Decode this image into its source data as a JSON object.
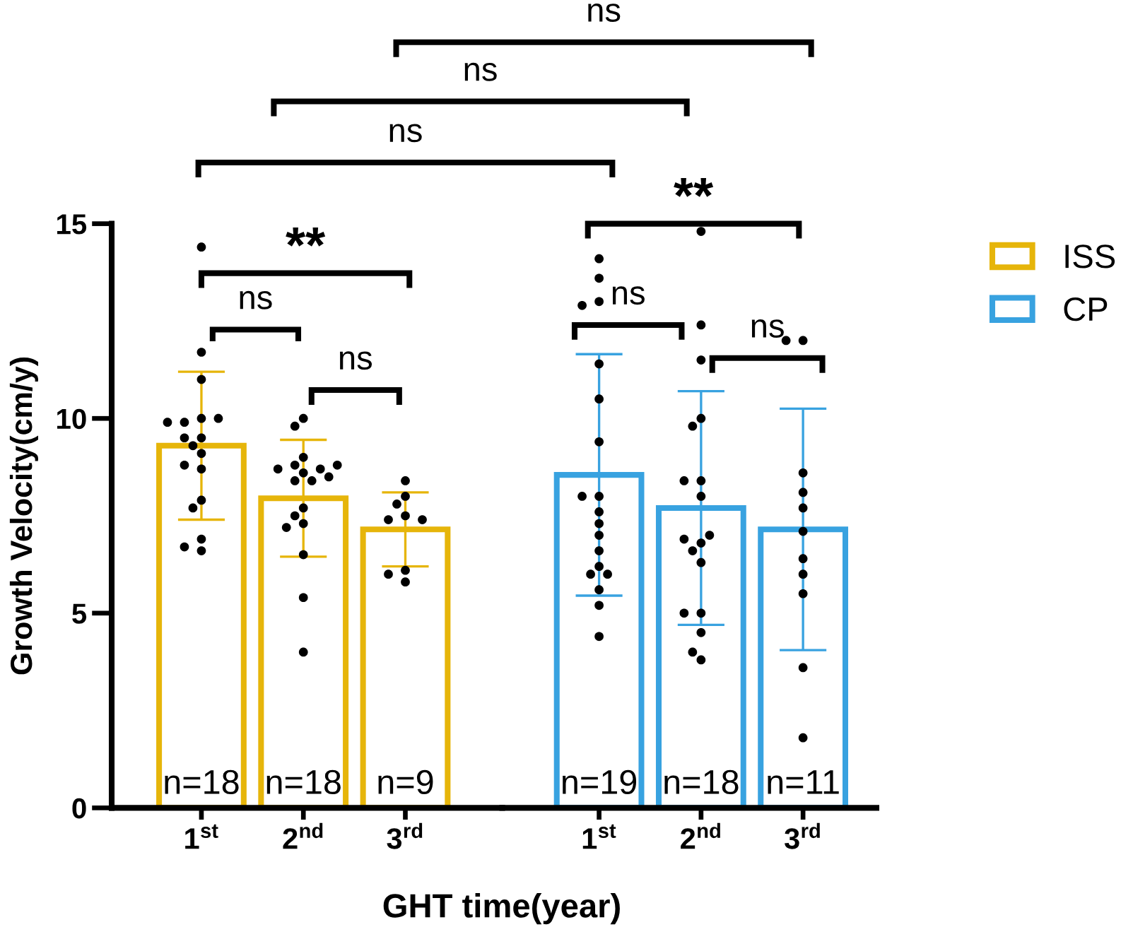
{
  "chart_data": [
    {
      "type": "bar",
      "categories": [
        "1$^{st}$",
        "2$^{nd}$",
        "3$^{rd}$"
      ],
      "xlabel": "GHT time(year)",
      "ylabel": "Growth Velocity(cm/y)",
      "ylim": [
        0,
        15
      ],
      "yticks": [
        0,
        5,
        10,
        15
      ],
      "legend": "top right",
      "series": [
        {
          "name": "ISS",
          "color": "#e6b50a",
          "values": [
            9.3,
            7.95,
            7.15
          ],
          "errors": [
            1.9,
            1.5,
            0.95
          ]
        },
        {
          "type": "scatter",
          "color": "#000000",
          "x": [
            "1$^{st}$",
            "1$^{st}$",
            "1$^{st}$",
            "1$^{st}$",
            "1$^{st}$",
            "1$^{st}$",
            "1$^{st}$",
            "1$^{st}$",
            "1$^{st}$",
            "1$^{st}$",
            "1$^{st}$",
            "1$^{st}$",
            "1$^{st}$",
            "1$^{st}$",
            "1$^{st}$",
            "1$^{st}$",
            "1$^{st}$",
            "1$^{st}$",
            "2$^{nd}$",
            "2$^{nd}$",
            "2$^{nd}$",
            "2$^{nd}$",
            "2$^{nd}$",
            "2$^{nd}$",
            "2$^{nd}$",
            "2$^{nd}$",
            "2$^{nd}$",
            "2$^{nd}$",
            "2$^{nd}$",
            "2$^{nd}$",
            "2$^{nd}$",
            "2$^{nd}$",
            "2$^{nd}$",
            "2$^{nd}$",
            "2$^{nd}$",
            "2$^{nd}$",
            "3$^{rd}$",
            "3$^{rd}$",
            "3$^{rd}$",
            "3$^{rd}$",
            "3$^{rd}$",
            "3$^{rd}$",
            "3$^{rd}$",
            "3$^{rd}$",
            "3$^{rd}$"
          ],
          "values": [
            14.4,
            11.7,
            11.0,
            10.0,
            9.9,
            10.0,
            9.9,
            9.5,
            9.5,
            9.3,
            9.1,
            8.7,
            8.8,
            7.9,
            7.7,
            6.9,
            6.6,
            6.7,
            10.0,
            9.8,
            9.0,
            8.6,
            8.8,
            8.7,
            8.7,
            8.8,
            8.4,
            8.4,
            8.5,
            7.7,
            7.5,
            7.3,
            7.2,
            6.5,
            5.4,
            4.0,
            8.4,
            8.0,
            7.8,
            7.5,
            7.4,
            7.4,
            6.1,
            6.0,
            5.8
          ]
        }
      ],
      "annotations": [
        {
          "text": "n=18",
          "x": "1$^{st}$",
          "y": 0
        },
        {
          "text": "n=18",
          "x": "2$^{nd}$",
          "y": 0
        },
        {
          "text": "n=9",
          "x": "3$^{rd}$",
          "y": 0
        },
        "ns",
        "ns",
        "ns",
        "**",
        "ns",
        "ns"
      ]
    },
    {
      "type": "bar",
      "categories": [
        "1$^{st}$",
        "2$^{nd}$",
        "3$^{rd}$"
      ],
      "ylim": [
        0,
        15
      ],
      "tick_labels": "x",
      "legend": "top right",
      "series": [
        {
          "name": "CP",
          "color": "#38a2e0",
          "values": [
            8.55,
            7.7,
            7.15
          ],
          "errors": [
            3.1,
            3.0,
            3.1
          ]
        },
        {
          "type": "scatter",
          "color": "#000000",
          "x": [
            "1$^{st}$",
            "1$^{st}$",
            "1$^{st}$",
            "1$^{st}$",
            "1$^{st}$",
            "1$^{st}$",
            "1$^{st}$",
            "1$^{st}$",
            "1$^{st}$",
            "1$^{st}$",
            "1$^{st}$",
            "1$^{st}$",
            "1$^{st}$",
            "1$^{st}$",
            "1$^{st}$",
            "1$^{st}$",
            "1$^{st}$",
            "1$^{st}$",
            "1$^{st}$",
            "2$^{nd}$",
            "2$^{nd}$",
            "2$^{nd}$",
            "2$^{nd}$",
            "2$^{nd}$",
            "2$^{nd}$",
            "2$^{nd}$",
            "2$^{nd}$",
            "2$^{nd}$",
            "2$^{nd}$",
            "2$^{nd}$",
            "2$^{nd}$",
            "2$^{nd}$",
            "2$^{nd}$",
            "2$^{nd}$",
            "2$^{nd}$",
            "2$^{nd}$",
            "2$^{nd}$",
            "3$^{rd}$",
            "3$^{rd}$",
            "3$^{rd}$",
            "3$^{rd}$",
            "3$^{rd}$",
            "3$^{rd}$",
            "3$^{rd}$",
            "3$^{rd}$",
            "3$^{rd}$",
            "3$^{rd}$",
            "3$^{rd}$"
          ],
          "values": [
            14.1,
            13.6,
            13.0,
            12.9,
            11.4,
            10.5,
            9.4,
            8.0,
            8.0,
            7.6,
            7.3,
            7.0,
            6.6,
            6.2,
            6.0,
            6.0,
            5.6,
            5.2,
            4.4,
            14.8,
            12.4,
            11.5,
            10.0,
            9.8,
            8.4,
            8.4,
            8.0,
            6.8,
            6.9,
            7.0,
            6.6,
            6.3,
            5.0,
            5.0,
            4.5,
            3.8,
            4.0,
            12.0,
            12.0,
            8.6,
            8.1,
            7.7,
            7.1,
            6.4,
            6.0,
            5.5,
            3.6,
            1.8
          ]
        }
      ],
      "annotations": [
        {
          "text": "n=19",
          "x": "1$^{st}$",
          "y": 0
        },
        {
          "text": "n=18",
          "x": "2$^{nd}$",
          "y": 0
        },
        {
          "text": "n=11",
          "x": "3$^{rd}$",
          "y": 0
        },
        "**",
        "ns",
        "ns"
      ]
    }
  ]
}
